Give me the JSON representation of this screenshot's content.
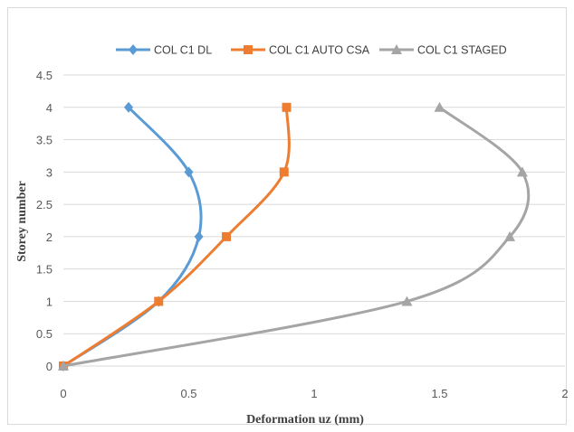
{
  "chart_data": {
    "type": "line",
    "xlabel": "Deformation uz (mm)",
    "ylabel": "Storey number",
    "xlim": [
      0,
      2
    ],
    "ylim": [
      0,
      4.5
    ],
    "x_ticks": [
      "0",
      "0.5",
      "1",
      "1.5",
      "2"
    ],
    "y_ticks": [
      "0",
      "0.5",
      "1",
      "1.5",
      "2",
      "2.5",
      "3",
      "3.5",
      "4",
      "4.5"
    ],
    "grid": "horizontal",
    "legend_position": "top",
    "smooth": true,
    "series": [
      {
        "name": "COL C1 DL",
        "color": "#5b9bd5",
        "marker": "diamond",
        "x": [
          0,
          0.38,
          0.54,
          0.5,
          0.26
        ],
        "y": [
          0,
          1,
          2,
          3,
          4
        ]
      },
      {
        "name": "COL C1 AUTO CSA",
        "color": "#ed7d31",
        "marker": "square",
        "x": [
          0,
          0.38,
          0.65,
          0.88,
          0.89
        ],
        "y": [
          0,
          1,
          2,
          3,
          4
        ]
      },
      {
        "name": "COL C1 STAGED",
        "color": "#a5a5a5",
        "marker": "triangle",
        "x": [
          0,
          1.37,
          1.78,
          1.83,
          1.5
        ],
        "y": [
          0,
          1,
          2,
          3,
          4
        ]
      }
    ]
  }
}
